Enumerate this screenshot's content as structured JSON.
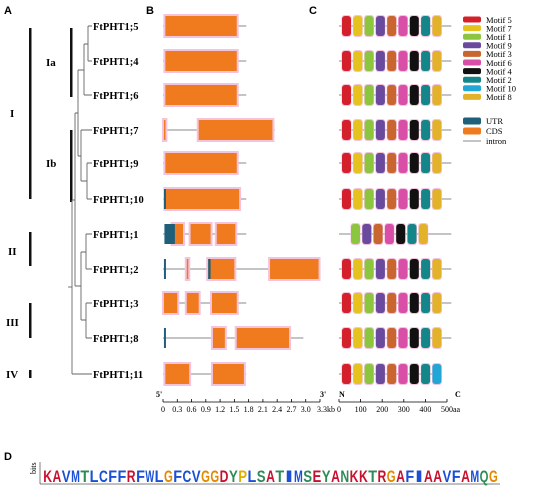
{
  "panels": {
    "a": "A",
    "b": "B",
    "c": "C",
    "d": "D"
  },
  "groups": [
    {
      "label": "I"
    },
    {
      "label": "Ia"
    },
    {
      "label": "Ib"
    },
    {
      "label": "II"
    },
    {
      "label": "III"
    },
    {
      "label": "IV"
    }
  ],
  "colors": {
    "utr": "#1f5f7a",
    "cds": "#f07a1e",
    "highlight": "#f4c4de",
    "intron": "#888888",
    "motif1": "#8cc63f",
    "motif2": "#14868a",
    "motif3": "#c9652e",
    "motif4": "#111111",
    "motif5": "#d4202a",
    "motif6": "#d94fa8",
    "motif7": "#e6c21e",
    "motif8": "#e2b32a",
    "motif9": "#6a4a9c",
    "motif10": "#22a6d6"
  },
  "legend": {
    "motifs": [
      {
        "key": "motif5",
        "label": "Motif 5"
      },
      {
        "key": "motif7",
        "label": "Motif 7"
      },
      {
        "key": "motif1",
        "label": "Motif 1"
      },
      {
        "key": "motif9",
        "label": "Motif 9"
      },
      {
        "key": "motif3",
        "label": "Motif 3"
      },
      {
        "key": "motif6",
        "label": "Motif 6"
      },
      {
        "key": "motif4",
        "label": "Motif 4"
      },
      {
        "key": "motif2",
        "label": "Motif 2"
      },
      {
        "key": "motif10",
        "label": "Motif 10"
      },
      {
        "key": "motif8",
        "label": "Motif 8"
      }
    ],
    "features": [
      {
        "key": "utr",
        "label": "UTR",
        "kind": "box"
      },
      {
        "key": "cds",
        "label": "CDS",
        "kind": "box"
      },
      {
        "key": "intron",
        "label": "intron",
        "kind": "line"
      }
    ]
  },
  "genes": [
    {
      "name": "FtPHT1;5",
      "length_kb": 1.75,
      "cds": [
        [
          0.05,
          1.55
        ]
      ],
      "utr": [],
      "protein_aa": 520,
      "motifs": [
        "motif5",
        "motif7",
        "motif1",
        "motif9",
        "motif3",
        "motif6",
        "motif4",
        "motif2",
        "motif8"
      ]
    },
    {
      "name": "FtPHT1;4",
      "length_kb": 1.75,
      "cds": [
        [
          0.05,
          1.55
        ]
      ],
      "utr": [],
      "protein_aa": 520,
      "motifs": [
        "motif5",
        "motif7",
        "motif1",
        "motif9",
        "motif3",
        "motif6",
        "motif4",
        "motif2",
        "motif8"
      ]
    },
    {
      "name": "FtPHT1;6",
      "length_kb": 1.75,
      "cds": [
        [
          0.05,
          1.55
        ]
      ],
      "utr": [],
      "protein_aa": 520,
      "motifs": [
        "motif5",
        "motif7",
        "motif1",
        "motif9",
        "motif3",
        "motif6",
        "motif4",
        "motif2",
        "motif8"
      ]
    },
    {
      "name": "FtPHT1;7",
      "length_kb": 2.35,
      "cds": [
        [
          0.02,
          0.05
        ],
        [
          0.75,
          2.3
        ]
      ],
      "utr": [],
      "protein_aa": 520,
      "motifs": [
        "motif5",
        "motif7",
        "motif1",
        "motif9",
        "motif3",
        "motif6",
        "motif4",
        "motif2",
        "motif8"
      ]
    },
    {
      "name": "FtPHT1;9",
      "length_kb": 1.75,
      "cds": [
        [
          0.05,
          1.55
        ]
      ],
      "utr": [],
      "protein_aa": 520,
      "motifs": [
        "motif5",
        "motif7",
        "motif1",
        "motif9",
        "motif3",
        "motif6",
        "motif4",
        "motif2",
        "motif8"
      ]
    },
    {
      "name": "FtPHT1;10",
      "length_kb": 1.75,
      "cds": [
        [
          0.05,
          1.6
        ]
      ],
      "utr": [
        [
          0.02,
          0.06
        ]
      ],
      "protein_aa": 520,
      "motifs": [
        "motif5",
        "motif7",
        "motif1",
        "motif9",
        "motif3",
        "motif6",
        "motif4",
        "motif2",
        "motif8"
      ]
    },
    {
      "name": "FtPHT1;1",
      "length_kb": 1.75,
      "cds": [
        [
          0.2,
          0.42
        ],
        [
          0.58,
          1.0
        ],
        [
          1.13,
          1.52
        ]
      ],
      "utr": [
        [
          0.03,
          0.25
        ]
      ],
      "protein_aa": 520,
      "motifs": [
        "motif1",
        "motif9",
        "motif3",
        "motif6",
        "motif4",
        "motif2",
        "motif8"
      ]
    },
    {
      "name": "FtPHT1;2",
      "length_kb": 3.3,
      "cds": [
        [
          0.5,
          0.52
        ],
        [
          0.95,
          1.5
        ],
        [
          2.25,
          3.27
        ]
      ],
      "utr": [
        [
          0.02,
          0.05
        ],
        [
          0.95,
          1.0
        ]
      ],
      "protein_aa": 520,
      "motifs": [
        "motif5",
        "motif7",
        "motif1",
        "motif9",
        "motif3",
        "motif6",
        "motif4",
        "motif2",
        "motif8"
      ]
    },
    {
      "name": "FtPHT1;3",
      "length_kb": 1.75,
      "cds": [
        [
          0.02,
          0.3
        ],
        [
          0.5,
          0.75
        ],
        [
          1.03,
          1.55
        ]
      ],
      "utr": [],
      "protein_aa": 520,
      "motifs": [
        "motif5",
        "motif7",
        "motif1",
        "motif9",
        "motif3",
        "motif6",
        "motif4",
        "motif2",
        "motif8"
      ]
    },
    {
      "name": "FtPHT1;8",
      "length_kb": 2.95,
      "cds": [
        [
          1.05,
          1.3
        ],
        [
          1.55,
          2.65
        ]
      ],
      "utr": [
        [
          0.02,
          0.05
        ]
      ],
      "protein_aa": 520,
      "motifs": [
        "motif5",
        "motif7",
        "motif1",
        "motif9",
        "motif3",
        "motif6",
        "motif4",
        "motif2",
        "motif8"
      ]
    },
    {
      "name": "FtPHT1;11",
      "length_kb": 1.75,
      "cds": [
        [
          0.05,
          0.55
        ],
        [
          1.05,
          1.7
        ]
      ],
      "utr": [],
      "protein_aa": 430,
      "motifs": [
        "motif5",
        "motif7",
        "motif1",
        "motif9",
        "motif3",
        "motif6",
        "motif4",
        "motif2",
        "motif10"
      ]
    }
  ],
  "gene_axis": {
    "start_label": "5'",
    "end_label": "3'",
    "max": 3.3,
    "ticks": [
      "0",
      "0.3",
      "0.6",
      "0.9",
      "1.2",
      "1.5",
      "1.8",
      "2.1",
      "2.4",
      "2.7",
      "3.0",
      "3.3kb"
    ]
  },
  "protein_axis": {
    "start_label": "N",
    "end_label": "C",
    "max": 500,
    "ticks": [
      "0",
      "100",
      "200",
      "300",
      "400",
      "500aa"
    ]
  },
  "logo": {
    "y_label": "bits",
    "sequence": "KAVMTLCFFRFWLGFCVGGDYPLSATIMSEYANKKTRGAFIAAVFAMQG",
    "colors": {
      "A": "#c8102e",
      "C": "#1a4fd6",
      "D": "#c8102e",
      "E": "#c8102e",
      "F": "#1a4fd6",
      "G": "#e08a00",
      "H": "#2e8b57",
      "I": "#1a4fd6",
      "K": "#c8102e",
      "L": "#1a4fd6",
      "M": "#1a4fd6",
      "N": "#2e8b57",
      "P": "#e0b000",
      "Q": "#2e8b57",
      "R": "#c8102e",
      "S": "#2e8b57",
      "T": "#2e8b57",
      "V": "#1a4fd6",
      "W": "#1a4fd6",
      "Y": "#2e8b57"
    }
  }
}
